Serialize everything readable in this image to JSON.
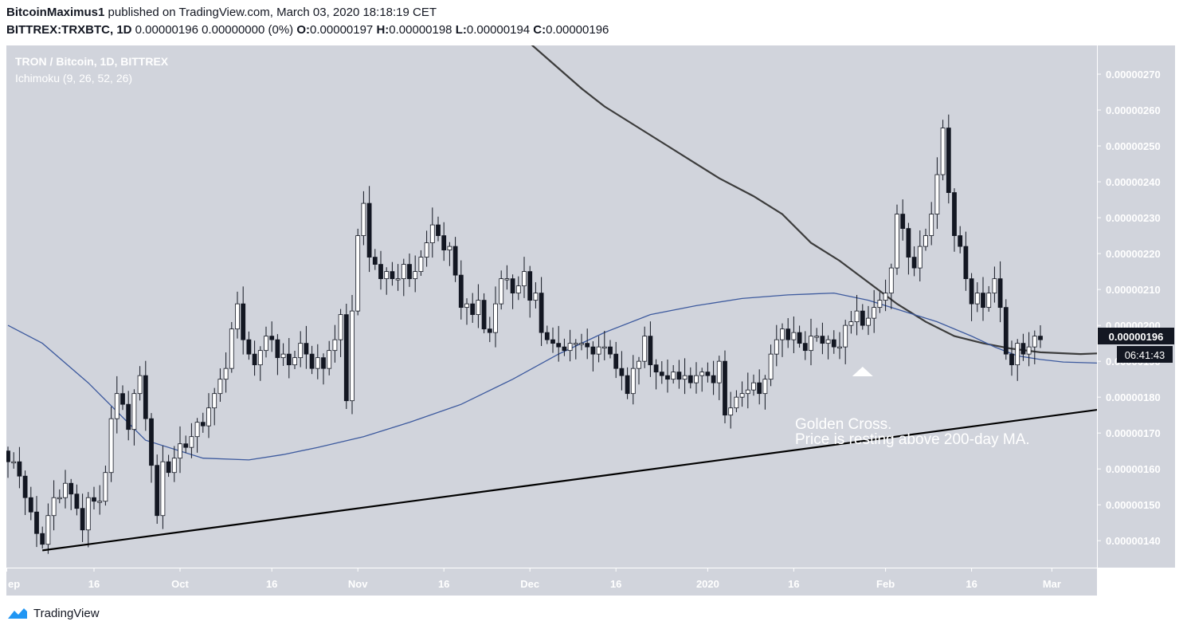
{
  "header": {
    "author": "BitcoinMaximus1",
    "published_text": "published on TradingView.com, March 03, 2020 18:18:19 CET",
    "symbol": "BITTREX:TRXBTC, 1D",
    "price_line": "0.00000196 0.00000000 (0%)",
    "o_label": "O:",
    "o_value": "0.00000197",
    "h_label": "H:",
    "h_value": "0.00000198",
    "l_label": "L:",
    "l_value": "0.00000194",
    "c_label": "C:",
    "c_value": "0.00000196"
  },
  "legend": {
    "title": "TRON / Bitcoin, 1D, BITTREX",
    "indicator": "Ichimoku (9, 26, 52, 26)"
  },
  "annotation": {
    "line1": "Golden Cross.",
    "line2": "Price is resting above 200-day MA."
  },
  "price_badge": "0.00000196",
  "countdown_badge": "06:41:43",
  "footer": {
    "brand": "TradingView"
  },
  "colors": {
    "plot_bg": "#d1d4dc",
    "axis_bg": "#d1d4dc",
    "candle_up": "#ffffff",
    "candle_down": "#131722",
    "ma_200": "#3c3c3c",
    "ma_50": "#3d5a9e",
    "trendline": "#000000",
    "badge_bg": "#131722",
    "brand_blue": "#2196f3"
  },
  "chart_data": {
    "type": "candlestick",
    "y_unit": "BTC",
    "ylim": [
      1.325e-06,
      2.78e-06
    ],
    "y_ticks": [
      "0.00000140",
      "0.00000150",
      "0.00000160",
      "0.00000170",
      "0.00000180",
      "0.00000190",
      "0.00000200",
      "0.00000210",
      "0.00000220",
      "0.00000230",
      "0.00000240",
      "0.00000250",
      "0.00000260",
      "0.00000270"
    ],
    "y_tick_values": [
      1.4,
      1.5,
      1.6,
      1.7,
      1.8,
      1.9,
      2.0,
      2.1,
      2.2,
      2.3,
      2.4,
      2.5,
      2.6,
      2.7
    ],
    "x_ticks": [
      {
        "label": "ep",
        "day": -0.2
      },
      {
        "label": "16",
        "day": 15
      },
      {
        "label": "Oct",
        "day": 30
      },
      {
        "label": "16",
        "day": 46
      },
      {
        "label": "Nov",
        "day": 61
      },
      {
        "label": "16",
        "day": 76
      },
      {
        "label": "Dec",
        "day": 91
      },
      {
        "label": "16",
        "day": 106
      },
      {
        "label": "2020",
        "day": 122
      },
      {
        "label": "16",
        "day": 137
      },
      {
        "label": "Feb",
        "day": 153
      },
      {
        "label": "16",
        "day": 168
      },
      {
        "label": "Mar",
        "day": 182
      }
    ],
    "x_day_range": [
      -0.2,
      182.2
    ],
    "closes": [
      1.62,
      1.62,
      1.58,
      1.52,
      1.48,
      1.42,
      1.39,
      1.47,
      1.52,
      1.52,
      1.56,
      1.53,
      1.49,
      1.43,
      1.52,
      1.51,
      1.51,
      1.59,
      1.74,
      1.81,
      1.78,
      1.71,
      1.81,
      1.86,
      1.74,
      1.61,
      1.47,
      1.62,
      1.59,
      1.63,
      1.67,
      1.66,
      1.69,
      1.73,
      1.72,
      1.77,
      1.81,
      1.85,
      1.88,
      1.99,
      2.06,
      1.96,
      1.92,
      1.89,
      1.93,
      1.97,
      1.96,
      1.91,
      1.92,
      1.89,
      1.91,
      1.95,
      1.92,
      1.88,
      1.91,
      1.88,
      1.93,
      1.96,
      2.03,
      1.79,
      2.04,
      2.25,
      2.34,
      2.19,
      2.17,
      2.13,
      2.15,
      2.13,
      2.13,
      2.17,
      2.13,
      2.15,
      2.19,
      2.23,
      2.28,
      2.25,
      2.21,
      2.22,
      2.14,
      2.05,
      2.06,
      2.03,
      2.07,
      1.99,
      1.98,
      2.06,
      2.13,
      2.13,
      2.09,
      2.11,
      2.15,
      2.07,
      2.09,
      1.98,
      1.96,
      1.95,
      1.94,
      1.93,
      1.95,
      1.95,
      1.95,
      1.94,
      1.92,
      1.94,
      1.94,
      1.92,
      1.88,
      1.86,
      1.81,
      1.88,
      1.9,
      1.97,
      1.89,
      1.87,
      1.86,
      1.85,
      1.87,
      1.85,
      1.86,
      1.84,
      1.86,
      1.87,
      1.86,
      1.84,
      1.9,
      1.75,
      1.77,
      1.8,
      1.81,
      1.82,
      1.84,
      1.81,
      1.85,
      1.92,
      1.96,
      1.99,
      1.96,
      1.98,
      1.95,
      1.93,
      1.97,
      1.97,
      1.95,
      1.96,
      1.94,
      1.94,
      2.0,
      2.01,
      2.04,
      2.0,
      2.02,
      2.05,
      2.07,
      2.09,
      2.16,
      2.31,
      2.27,
      2.19,
      2.16,
      2.22,
      2.25,
      2.31,
      2.42,
      2.55,
      2.37,
      2.25,
      2.22,
      2.13,
      2.06,
      2.09,
      2.05,
      2.09,
      2.13,
      2.05,
      1.92,
      1.89,
      1.95,
      1.92,
      1.94,
      1.97,
      1.96
    ],
    "ma_200": [
      [
        88,
        2.85
      ],
      [
        90,
        2.8
      ],
      [
        95,
        2.73
      ],
      [
        100,
        2.66
      ],
      [
        104,
        2.61
      ],
      [
        110,
        2.55
      ],
      [
        115,
        2.5
      ],
      [
        120,
        2.45
      ],
      [
        124,
        2.41
      ],
      [
        130,
        2.36
      ],
      [
        135,
        2.31
      ],
      [
        140,
        2.23
      ],
      [
        145,
        2.18
      ],
      [
        150,
        2.12
      ],
      [
        155,
        2.06
      ],
      [
        160,
        2.01
      ],
      [
        165,
        1.97
      ],
      [
        170,
        1.95
      ],
      [
        175,
        1.935
      ],
      [
        180,
        1.925
      ],
      [
        187,
        1.92
      ],
      [
        195,
        1.925
      ],
      [
        203,
        1.937
      ],
      [
        211,
        1.929
      ],
      [
        220,
        1.923
      ],
      [
        230,
        1.924
      ],
      [
        240,
        1.924
      ],
      [
        247,
        1.933
      ]
    ],
    "ma_50": [
      [
        0,
        2.0
      ],
      [
        6,
        1.95
      ],
      [
        14,
        1.84
      ],
      [
        24,
        1.68
      ],
      [
        34,
        1.63
      ],
      [
        42,
        1.625
      ],
      [
        48,
        1.64
      ],
      [
        54,
        1.66
      ],
      [
        62,
        1.69
      ],
      [
        70,
        1.73
      ],
      [
        79,
        1.78
      ],
      [
        88,
        1.85
      ],
      [
        96,
        1.92
      ],
      [
        104,
        1.98
      ],
      [
        112,
        2.03
      ],
      [
        120,
        2.055
      ],
      [
        128,
        2.075
      ],
      [
        136,
        2.085
      ],
      [
        144,
        2.09
      ],
      [
        150,
        2.07
      ],
      [
        156,
        2.04
      ],
      [
        162,
        2.01
      ],
      [
        168,
        1.97
      ],
      [
        172,
        1.94
      ],
      [
        176,
        1.915
      ],
      [
        180,
        1.905
      ],
      [
        184,
        1.898
      ],
      [
        190,
        1.895
      ],
      [
        196,
        1.9
      ],
      [
        202,
        1.92
      ],
      [
        208,
        1.945
      ],
      [
        214,
        1.98
      ],
      [
        220,
        2.03
      ],
      [
        226,
        2.05
      ],
      [
        232,
        2.07
      ]
    ],
    "trendline": [
      [
        6,
        1.373
      ],
      [
        244,
        1.88
      ]
    ],
    "golden_cross_marker_day": 149
  }
}
